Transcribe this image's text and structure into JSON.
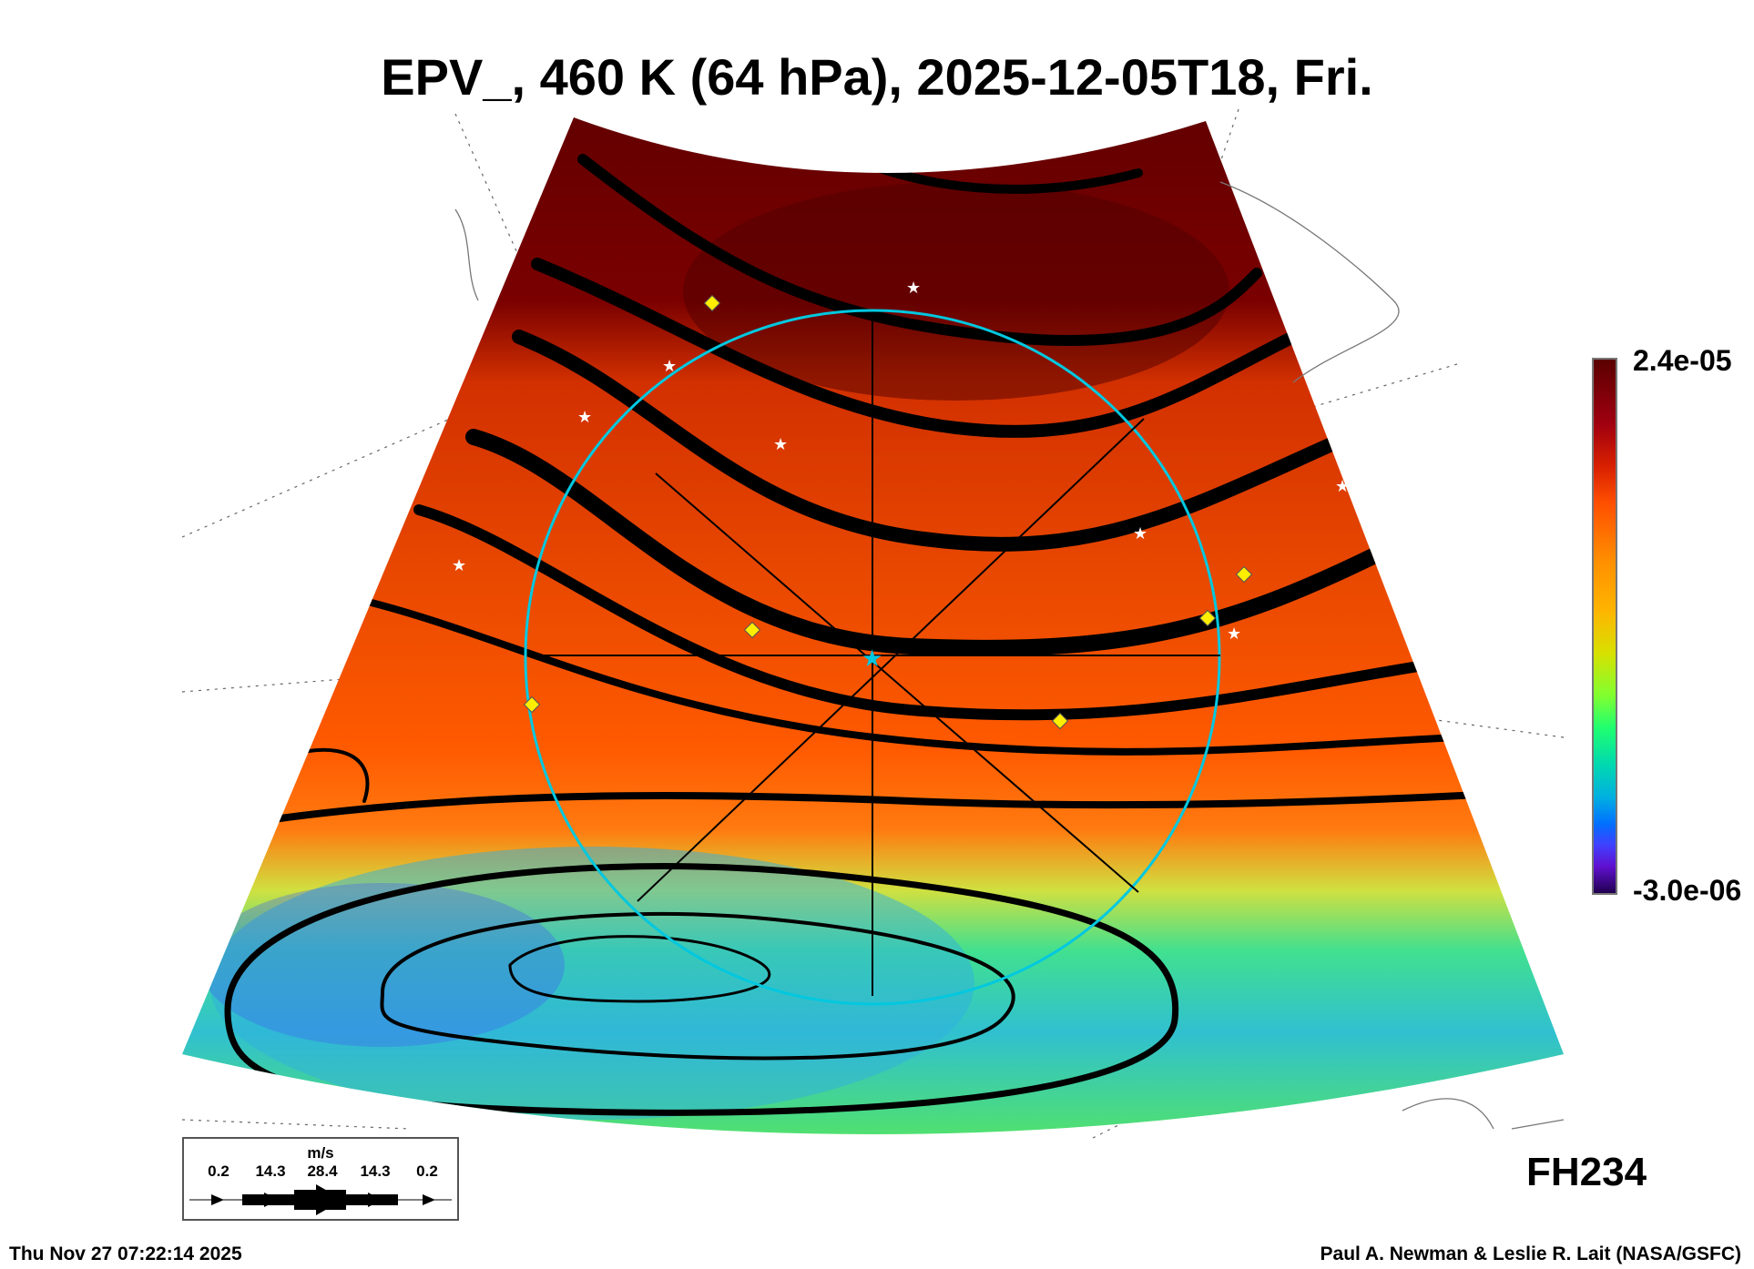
{
  "title": "EPV_, 460 K (64 hPa), 2025-12-05T18, Fri.",
  "colorbar": {
    "max_label": "2.4e-05",
    "min_label": "-3.0e-06",
    "max": 2.4e-05,
    "min": -3e-06
  },
  "legend": {
    "unit": "m/s",
    "values": [
      "0.2",
      "14.3",
      "28.4",
      "14.3",
      "0.2"
    ]
  },
  "forecast_hour": "FH234",
  "footer": {
    "timestamp": "Thu Nov 27 07:22:14 2025",
    "credit": "Paul A. Newman & Leslie R. Lait (NASA/GSFC)"
  },
  "colors": {
    "ring": "#00c8e0",
    "markers": "#ffee00",
    "streamlines": "#000000"
  }
}
